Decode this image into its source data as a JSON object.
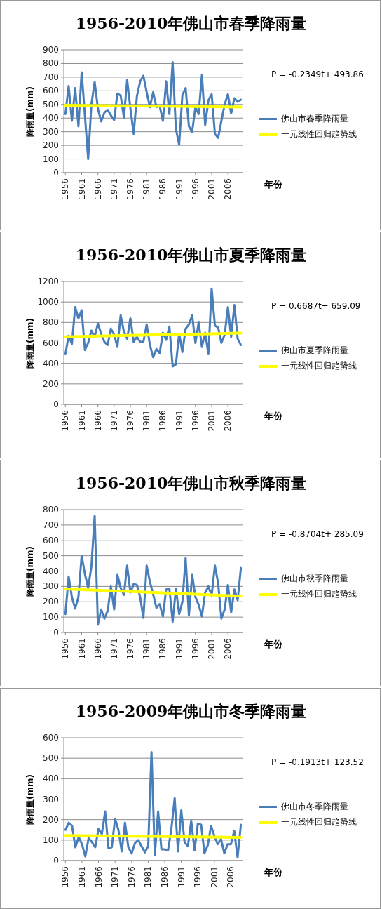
{
  "chart_data": [
    {
      "type": "line",
      "title": "1956-2010年佛山市春季降雨量",
      "xlabel": "年份",
      "ylabel": "降雨量(mm)",
      "annotations": [
        "P = -0.2349t+ 493.86"
      ],
      "grid": "y",
      "legend": "right",
      "x": [
        1956,
        1957,
        1958,
        1959,
        1960,
        1961,
        1962,
        1963,
        1964,
        1965,
        1966,
        1967,
        1968,
        1969,
        1970,
        1971,
        1972,
        1973,
        1974,
        1975,
        1976,
        1977,
        1978,
        1979,
        1980,
        1981,
        1982,
        1983,
        1984,
        1985,
        1986,
        1987,
        1988,
        1989,
        1990,
        1991,
        1992,
        1993,
        1994,
        1995,
        1996,
        1997,
        1998,
        1999,
        2000,
        2001,
        2002,
        2003,
        2004,
        2005,
        2006,
        2007,
        2008,
        2009,
        2010
      ],
      "xlim": [
        1955.5,
        2010.5
      ],
      "xticks": [
        1956,
        1961,
        1966,
        1971,
        1976,
        1981,
        1986,
        1991,
        1996,
        2001,
        2006
      ],
      "ylim": [
        0,
        900
      ],
      "yticks": [
        0,
        100,
        200,
        300,
        400,
        500,
        600,
        700,
        800,
        900
      ],
      "series": [
        {
          "name": "佛山市春季降雨量",
          "color": "#4a7ebb",
          "values": [
            430,
            635,
            380,
            620,
            340,
            735,
            420,
            100,
            500,
            665,
            470,
            375,
            440,
            460,
            420,
            385,
            580,
            565,
            405,
            680,
            470,
            285,
            560,
            670,
            710,
            590,
            480,
            590,
            480,
            490,
            380,
            670,
            430,
            810,
            320,
            205,
            570,
            620,
            340,
            300,
            480,
            430,
            715,
            350,
            530,
            575,
            285,
            255,
            380,
            500,
            575,
            435,
            545,
            520,
            535
          ]
        },
        {
          "name": "一元线性回归趋势线",
          "type": "line",
          "color": "#ffff00",
          "x": [
            1956,
            2010
          ],
          "values": [
            494,
            481
          ]
        }
      ]
    },
    {
      "type": "line",
      "title": "1956-2010年佛山市夏季降雨量",
      "xlabel": "年份",
      "ylabel": "降雨量(mm)",
      "annotations": [
        "P = 0.6687t+ 659.09"
      ],
      "grid": "y",
      "legend": "right",
      "x": [
        1956,
        1957,
        1958,
        1959,
        1960,
        1961,
        1962,
        1963,
        1964,
        1965,
        1966,
        1967,
        1968,
        1969,
        1970,
        1971,
        1972,
        1973,
        1974,
        1975,
        1976,
        1977,
        1978,
        1979,
        1980,
        1981,
        1982,
        1983,
        1984,
        1985,
        1986,
        1987,
        1988,
        1989,
        1990,
        1991,
        1992,
        1993,
        1994,
        1995,
        1996,
        1997,
        1998,
        1999,
        2000,
        2001,
        2002,
        2003,
        2004,
        2005,
        2006,
        2007,
        2008,
        2009,
        2010
      ],
      "xlim": [
        1955.5,
        2010.5
      ],
      "xticks": [
        1956,
        1961,
        1966,
        1971,
        1976,
        1981,
        1986,
        1991,
        1996,
        2001,
        2006
      ],
      "ylim": [
        0,
        1200
      ],
      "yticks": [
        0,
        200,
        400,
        600,
        800,
        1000,
        1200
      ],
      "series": [
        {
          "name": "佛山市夏季降雨量",
          "color": "#4a7ebb",
          "values": [
            490,
            670,
            590,
            950,
            840,
            920,
            530,
            600,
            720,
            660,
            790,
            690,
            610,
            580,
            740,
            680,
            560,
            870,
            710,
            640,
            840,
            610,
            660,
            610,
            610,
            780,
            580,
            460,
            540,
            500,
            700,
            630,
            760,
            370,
            390,
            690,
            510,
            740,
            780,
            870,
            600,
            800,
            560,
            700,
            490,
            1130,
            770,
            750,
            600,
            680,
            950,
            660,
            970,
            640,
            580
          ]
        },
        {
          "name": "一元线性回归趋势线",
          "type": "line",
          "color": "#ffff00",
          "x": [
            1956,
            2010
          ],
          "values": [
            660,
            696
          ]
        }
      ]
    },
    {
      "type": "line",
      "title": "1956-2010年佛山市秋季降雨量",
      "xlabel": "年份",
      "ylabel": "降雨量(mm)",
      "annotations": [
        "P = -0.8704t+ 285.09"
      ],
      "grid": "y",
      "legend": "right",
      "x": [
        1956,
        1957,
        1958,
        1959,
        1960,
        1961,
        1962,
        1963,
        1964,
        1965,
        1966,
        1967,
        1968,
        1969,
        1970,
        1971,
        1972,
        1973,
        1974,
        1975,
        1976,
        1977,
        1978,
        1979,
        1980,
        1981,
        1982,
        1983,
        1984,
        1985,
        1986,
        1987,
        1988,
        1989,
        1990,
        1991,
        1992,
        1993,
        1994,
        1995,
        1996,
        1997,
        1998,
        1999,
        2000,
        2001,
        2002,
        2003,
        2004,
        2005,
        2006,
        2007,
        2008,
        2009,
        2010
      ],
      "xlim": [
        1955.5,
        2010.5
      ],
      "xticks": [
        1956,
        1961,
        1966,
        1971,
        1976,
        1981,
        1986,
        1991,
        1996,
        2001,
        2006
      ],
      "ylim": [
        0,
        800
      ],
      "yticks": [
        0,
        100,
        200,
        300,
        400,
        500,
        600,
        700,
        800
      ],
      "series": [
        {
          "name": "佛山市秋季降雨量",
          "color": "#4a7ebb",
          "values": [
            120,
            365,
            230,
            155,
            230,
            500,
            380,
            290,
            430,
            760,
            50,
            150,
            90,
            140,
            300,
            150,
            375,
            290,
            245,
            435,
            260,
            315,
            310,
            230,
            95,
            435,
            330,
            250,
            160,
            185,
            105,
            280,
            285,
            70,
            285,
            120,
            200,
            485,
            110,
            375,
            230,
            180,
            105,
            260,
            300,
            240,
            435,
            320,
            90,
            150,
            310,
            130,
            280,
            210,
            420
          ]
        },
        {
          "name": "一元线性回归趋势线",
          "type": "line",
          "color": "#ffff00",
          "x": [
            1956,
            2010
          ],
          "values": [
            284,
            237
          ]
        }
      ]
    },
    {
      "type": "line",
      "title": "1956-2009年佛山市冬季降雨量",
      "xlabel": "年份",
      "ylabel": "降雨量(mm)",
      "annotations": [
        "P = -0.1913t+ 123.52"
      ],
      "grid": "y",
      "legend": "right",
      "x": [
        1956,
        1957,
        1958,
        1959,
        1960,
        1961,
        1962,
        1963,
        1964,
        1965,
        1966,
        1967,
        1968,
        1969,
        1970,
        1971,
        1972,
        1973,
        1974,
        1975,
        1976,
        1977,
        1978,
        1979,
        1980,
        1981,
        1982,
        1983,
        1984,
        1985,
        1986,
        1987,
        1988,
        1989,
        1990,
        1991,
        1992,
        1993,
        1994,
        1995,
        1996,
        1997,
        1998,
        1999,
        2000,
        2001,
        2002,
        2003,
        2004,
        2005,
        2006,
        2007,
        2008,
        2009
      ],
      "xlim": [
        1955.5,
        2009.5
      ],
      "xticks": [
        1956,
        1961,
        1966,
        1971,
        1976,
        1981,
        1986,
        1991,
        1996,
        2001,
        2006
      ],
      "ylim": [
        0,
        600
      ],
      "yticks": [
        0,
        100,
        200,
        300,
        400,
        500,
        600
      ],
      "series": [
        {
          "name": "佛山市冬季降雨量",
          "color": "#4a7ebb",
          "values": [
            150,
            185,
            170,
            65,
            115,
            80,
            20,
            110,
            90,
            65,
            155,
            130,
            240,
            60,
            65,
            205,
            150,
            45,
            185,
            65,
            35,
            85,
            100,
            70,
            40,
            70,
            530,
            25,
            240,
            55,
            55,
            50,
            155,
            305,
            45,
            245,
            90,
            70,
            195,
            50,
            180,
            175,
            35,
            75,
            170,
            120,
            80,
            105,
            35,
            80,
            80,
            145,
            15,
            175
          ]
        },
        {
          "name": "一元线性回归趋势线",
          "type": "line",
          "color": "#ffff00",
          "x": [
            1956,
            2009
          ],
          "values": [
            123,
            113
          ]
        }
      ]
    }
  ]
}
